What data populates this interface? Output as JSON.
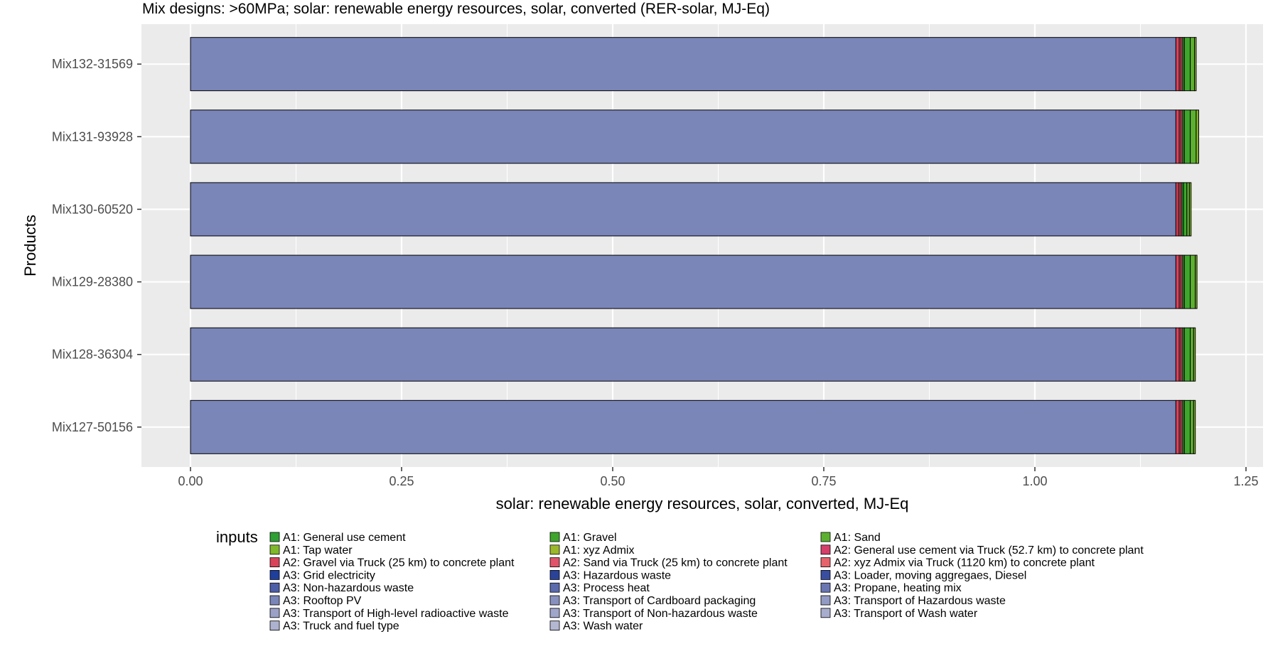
{
  "chart_data": {
    "type": "bar",
    "orientation": "horizontal",
    "stacked": true,
    "title": "Mix designs: >60MPa; solar: renewable energy resources, solar, converted (RER-solar, MJ-Eq)",
    "xlabel": "solar: renewable energy resources, solar, converted, MJ-Eq",
    "ylabel": "Products",
    "xlim": [
      -0.12,
      1.25
    ],
    "xticks": [
      0.0,
      0.25,
      0.5,
      0.75,
      1.0,
      1.25
    ],
    "xtick_labels": [
      "0.00",
      "0.25",
      "0.50",
      "0.75",
      "1.00",
      "1.25"
    ],
    "grid": true,
    "categories": [
      "Mix132-31569",
      "Mix131-93928",
      "Mix130-60520",
      "Mix129-28380",
      "Mix128-36304",
      "Mix127-50156"
    ],
    "series": [
      {
        "name": "A3: Rooftop PV",
        "color": "#7a85b8",
        "values": [
          1.167,
          1.167,
          1.167,
          1.167,
          1.167,
          1.167
        ]
      },
      {
        "name": "A2: Gravel via Truck (25 km) to concrete plant",
        "color": "#d9435a",
        "values": [
          0.004,
          0.004,
          0.003,
          0.004,
          0.004,
          0.004
        ]
      },
      {
        "name": "A2: Sand via Truck (25 km) to concrete plant",
        "color": "#e0536a",
        "values": [
          0.002,
          0.002,
          0.002,
          0.002,
          0.002,
          0.002
        ]
      },
      {
        "name": "A2: xyz Admix via Truck (1120 km) to concrete plant",
        "color": "#e7636c",
        "values": [
          0.002,
          0.002,
          0.002,
          0.002,
          0.002,
          0.002
        ]
      },
      {
        "name": "A1: General use cement",
        "color": "#2fa034",
        "values": [
          0.002,
          0.002,
          0.002,
          0.002,
          0.002,
          0.002
        ]
      },
      {
        "name": "A1: Gravel",
        "color": "#3fa62c",
        "values": [
          0.007,
          0.007,
          0.004,
          0.007,
          0.007,
          0.007
        ]
      },
      {
        "name": "A1: Sand",
        "color": "#5cb02f",
        "values": [
          0.005,
          0.007,
          0.003,
          0.006,
          0.004,
          0.004
        ]
      },
      {
        "name": "A1: Tap water",
        "color": "#7fb82a",
        "values": [
          0.002,
          0.003,
          0.002,
          0.002,
          0.002,
          0.002
        ]
      }
    ],
    "legend": {
      "title": "inputs",
      "position": "bottom",
      "items": [
        {
          "label": "A1: General use cement",
          "color": "#2fa034"
        },
        {
          "label": "A1: Tap water",
          "color": "#7fb82a"
        },
        {
          "label": "A2: Gravel via Truck (25 km) to concrete plant",
          "color": "#d9435a"
        },
        {
          "label": "A3: Grid electricity",
          "color": "#1f3f9c"
        },
        {
          "label": "A3: Non-hazardous waste",
          "color": "#4c5ea8"
        },
        {
          "label": "A3: Rooftop PV",
          "color": "#7a85b8"
        },
        {
          "label": "A3: Transport of High-level radioactive waste",
          "color": "#9aa0c6"
        },
        {
          "label": "A3: Truck and fuel type",
          "color": "#adb2cf"
        },
        {
          "label": "A1: Gravel",
          "color": "#3fa62c"
        },
        {
          "label": "A1: xyz Admix",
          "color": "#9bb72b"
        },
        {
          "label": "A2: Sand via Truck (25 km) to concrete plant",
          "color": "#e0536a"
        },
        {
          "label": "A3: Hazardous waste",
          "color": "#2a4399"
        },
        {
          "label": "A3: Process heat",
          "color": "#5a6aad"
        },
        {
          "label": "A3: Transport of Cardboard packaging",
          "color": "#8890bd"
        },
        {
          "label": "A3: Transport of Non-hazardous waste",
          "color": "#a0a6ca"
        },
        {
          "label": "A3: Wash water",
          "color": "#b3b7d2"
        },
        {
          "label": "A1: Sand",
          "color": "#5cb02f"
        },
        {
          "label": "A2: General use cement via Truck (52.7 km) to concrete plant",
          "color": "#d4406a"
        },
        {
          "label": "A2: xyz Admix via Truck (1120 km) to concrete plant",
          "color": "#e7636c"
        },
        {
          "label": "A3: Loader, moving aggregaes, Diesel",
          "color": "#3a4ea0"
        },
        {
          "label": "A3: Propane, heating mix",
          "color": "#6a76b2"
        },
        {
          "label": "A3: Transport of Hazardous waste",
          "color": "#939ac3"
        },
        {
          "label": "A3: Transport of Wash water",
          "color": "#a8adcd"
        }
      ]
    }
  }
}
